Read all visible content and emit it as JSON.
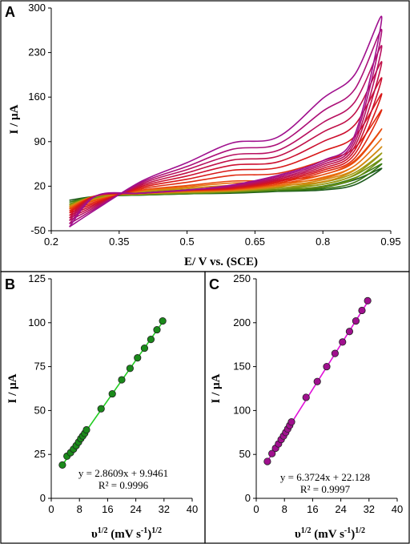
{
  "panels": {
    "a": {
      "letter": "A"
    },
    "b": {
      "letter": "B"
    },
    "c": {
      "letter": "C"
    }
  },
  "chart_data": [
    {
      "type": "line",
      "panel": "A",
      "xlabel": "E/ V vs. (SCE)",
      "ylabel": "I / µA",
      "xlim": [
        0.2,
        0.95
      ],
      "ylim": [
        -50,
        300
      ],
      "xticks": [
        "0.2",
        "0.35",
        "0.5",
        "0.65",
        "0.8",
        "0.95"
      ],
      "yticks": [
        "-50",
        "20",
        "90",
        "160",
        "230",
        "300"
      ],
      "grid": false,
      "description_colors": [
        "#1a5e20",
        "#4f8a10",
        "#8a9a10",
        "#e07a10",
        "#e84a0c",
        "#d81818",
        "#c0103a",
        "#b01070",
        "#a01090"
      ],
      "series": [
        {
          "scan": 1,
          "color": "#1e5b1e",
          "x": [
            0.24,
            0.3,
            0.4,
            0.5,
            0.6,
            0.7,
            0.8,
            0.87,
            0.93,
            0.87,
            0.8,
            0.7,
            0.6,
            0.5,
            0.4,
            0.3,
            0.24
          ],
          "y": [
            -2,
            4,
            9,
            11,
            12,
            12,
            14,
            22,
            48,
            30,
            18,
            12,
            9,
            8,
            6,
            4,
            -2
          ]
        },
        {
          "scan": 2,
          "color": "#3a7a14",
          "x": [
            0.24,
            0.3,
            0.4,
            0.5,
            0.6,
            0.7,
            0.8,
            0.87,
            0.93,
            0.87,
            0.8,
            0.7,
            0.6,
            0.5,
            0.4,
            0.3,
            0.24
          ],
          "y": [
            -5,
            3,
            9,
            12,
            13,
            13,
            16,
            26,
            55,
            33,
            20,
            13,
            10,
            8,
            6,
            4,
            -5
          ]
        },
        {
          "scan": 3,
          "color": "#6a8f12",
          "x": [
            0.24,
            0.3,
            0.4,
            0.5,
            0.6,
            0.7,
            0.8,
            0.87,
            0.93,
            0.87,
            0.8,
            0.7,
            0.6,
            0.5,
            0.4,
            0.3,
            0.24
          ],
          "y": [
            -8,
            2,
            10,
            13,
            15,
            15,
            19,
            32,
            63,
            37,
            23,
            15,
            11,
            9,
            7,
            4,
            -8
          ]
        },
        {
          "scan": 4,
          "color": "#9a9a12",
          "x": [
            0.24,
            0.3,
            0.4,
            0.5,
            0.6,
            0.7,
            0.8,
            0.87,
            0.93,
            0.87,
            0.8,
            0.7,
            0.6,
            0.5,
            0.4,
            0.3,
            0.24
          ],
          "y": [
            -10,
            1,
            11,
            15,
            18,
            18,
            23,
            38,
            72,
            41,
            26,
            17,
            12,
            10,
            8,
            4,
            -10
          ]
        },
        {
          "scan": 5,
          "color": "#d08a10",
          "x": [
            0.24,
            0.3,
            0.4,
            0.5,
            0.6,
            0.7,
            0.8,
            0.87,
            0.93,
            0.87,
            0.8,
            0.7,
            0.6,
            0.5,
            0.4,
            0.3,
            0.24
          ],
          "y": [
            -12,
            0,
            12,
            17,
            21,
            21,
            27,
            45,
            82,
            46,
            30,
            19,
            13,
            11,
            8,
            5,
            -12
          ]
        },
        {
          "scan": 6,
          "color": "#e87010",
          "x": [
            0.24,
            0.3,
            0.4,
            0.5,
            0.6,
            0.7,
            0.8,
            0.87,
            0.93,
            0.87,
            0.8,
            0.7,
            0.6,
            0.5,
            0.4,
            0.3,
            0.24
          ],
          "y": [
            -14,
            -1,
            13,
            19,
            25,
            25,
            32,
            52,
            95,
            52,
            34,
            21,
            14,
            12,
            9,
            5,
            -14
          ]
        },
        {
          "scan": 7,
          "color": "#e84a0c",
          "x": [
            0.24,
            0.3,
            0.4,
            0.5,
            0.6,
            0.7,
            0.8,
            0.87,
            0.93,
            0.87,
            0.8,
            0.7,
            0.6,
            0.5,
            0.4,
            0.3,
            0.24
          ],
          "y": [
            -16,
            -2,
            14,
            21,
            28,
            29,
            38,
            60,
            110,
            58,
            38,
            23,
            15,
            13,
            9,
            5,
            -16
          ]
        },
        {
          "scan": 8,
          "color": "#e02a10",
          "x": [
            0.24,
            0.3,
            0.4,
            0.5,
            0.6,
            0.7,
            0.8,
            0.87,
            0.93,
            0.87,
            0.8,
            0.7,
            0.6,
            0.5,
            0.4,
            0.3,
            0.24
          ],
          "y": [
            -19,
            -4,
            16,
            26,
            37,
            40,
            60,
            80,
            140,
            64,
            42,
            25,
            16,
            13,
            9,
            5,
            -19
          ]
        },
        {
          "scan": 9,
          "color": "#d81818",
          "x": [
            0.24,
            0.3,
            0.4,
            0.5,
            0.6,
            0.7,
            0.8,
            0.87,
            0.93,
            0.87,
            0.8,
            0.7,
            0.6,
            0.5,
            0.4,
            0.3,
            0.24
          ],
          "y": [
            -22,
            -6,
            18,
            31,
            45,
            49,
            75,
            98,
            165,
            70,
            45,
            27,
            17,
            14,
            9,
            5,
            -22
          ]
        },
        {
          "scan": 10,
          "color": "#cc1030",
          "x": [
            0.24,
            0.3,
            0.4,
            0.5,
            0.6,
            0.7,
            0.8,
            0.87,
            0.93,
            0.87,
            0.8,
            0.7,
            0.6,
            0.5,
            0.4,
            0.3,
            0.24
          ],
          "y": [
            -26,
            -8,
            20,
            36,
            53,
            58,
            90,
            116,
            190,
            76,
            48,
            29,
            18,
            14,
            9,
            5,
            -26
          ]
        },
        {
          "scan": 11,
          "color": "#c01048",
          "x": [
            0.24,
            0.3,
            0.4,
            0.5,
            0.6,
            0.7,
            0.8,
            0.87,
            0.93,
            0.87,
            0.8,
            0.7,
            0.6,
            0.5,
            0.4,
            0.3,
            0.24
          ],
          "y": [
            -30,
            -10,
            22,
            41,
            61,
            67,
            105,
            134,
            215,
            82,
            51,
            31,
            19,
            14,
            9,
            5,
            -30
          ]
        },
        {
          "scan": 12,
          "color": "#b81060",
          "x": [
            0.24,
            0.3,
            0.4,
            0.5,
            0.6,
            0.7,
            0.8,
            0.87,
            0.93,
            0.87,
            0.8,
            0.7,
            0.6,
            0.5,
            0.4,
            0.3,
            0.24
          ],
          "y": [
            -34,
            -12,
            24,
            46,
            69,
            76,
            120,
            152,
            240,
            88,
            54,
            33,
            20,
            14,
            9,
            5,
            -34
          ]
        },
        {
          "scan": 13,
          "color": "#ac1078",
          "x": [
            0.24,
            0.3,
            0.4,
            0.5,
            0.6,
            0.7,
            0.8,
            0.87,
            0.93,
            0.87,
            0.8,
            0.7,
            0.6,
            0.5,
            0.4,
            0.3,
            0.24
          ],
          "y": [
            -39,
            -14,
            26,
            51,
            78,
            86,
            138,
            172,
            265,
            94,
            57,
            35,
            21,
            14,
            9,
            5,
            -39
          ]
        },
        {
          "scan": 14,
          "color": "#a0108e",
          "x": [
            0.24,
            0.3,
            0.4,
            0.5,
            0.6,
            0.7,
            0.8,
            0.87,
            0.93,
            0.87,
            0.8,
            0.7,
            0.6,
            0.5,
            0.4,
            0.3,
            0.24
          ],
          "y": [
            -44,
            -16,
            28,
            57,
            88,
            97,
            158,
            195,
            285,
            100,
            60,
            37,
            22,
            14,
            9,
            5,
            -44
          ]
        }
      ]
    },
    {
      "type": "scatter",
      "panel": "B",
      "xlabel": "υ1/2 (mV s-1)1/2",
      "ylabel": "I / µA",
      "xlim": [
        0,
        40
      ],
      "ylim": [
        0,
        125
      ],
      "xticks": [
        "0",
        "8",
        "16",
        "24",
        "32",
        "40"
      ],
      "yticks": [
        "0",
        "25",
        "50",
        "75",
        "100",
        "125"
      ],
      "grid": false,
      "marker_color": "#1a8a1a",
      "line_color": "#22cc22",
      "equation": "y = 2.8609x + 9.9461",
      "r2": "R² = 0.9996",
      "fit": {
        "slope": 2.8609,
        "intercept": 9.9461
      },
      "x": [
        3.16,
        4.47,
        5.48,
        6.32,
        7.07,
        7.75,
        8.37,
        8.94,
        9.49,
        10.0,
        14.14,
        17.32,
        20.0,
        22.36,
        24.49,
        26.46,
        28.28,
        30.0,
        31.62
      ],
      "y": [
        19,
        24,
        26,
        28,
        30,
        32,
        34,
        35.5,
        37,
        39,
        51,
        59.5,
        67.5,
        74,
        80,
        85.5,
        90.5,
        96,
        101
      ]
    },
    {
      "type": "scatter",
      "panel": "C",
      "xlabel": "υ1/2 (mV s-1)1/2",
      "ylabel": "I / µA",
      "xlim": [
        0,
        40
      ],
      "ylim": [
        0,
        250
      ],
      "xticks": [
        "0",
        "8",
        "16",
        "24",
        "32",
        "40"
      ],
      "yticks": [
        "0",
        "50",
        "100",
        "150",
        "200",
        "250"
      ],
      "grid": false,
      "marker_color": "#a0108e",
      "line_color": "#e010d8",
      "equation": "y = 6.3724x + 22.128",
      "r2": "R² = 0.9997",
      "fit": {
        "slope": 6.3724,
        "intercept": 22.128
      },
      "x": [
        3.16,
        4.47,
        5.48,
        6.32,
        7.07,
        7.75,
        8.37,
        8.94,
        9.49,
        10.0,
        14.14,
        17.32,
        20.0,
        22.36,
        24.49,
        26.46,
        28.28,
        30.0,
        31.62
      ],
      "y": [
        42,
        51,
        57,
        62,
        67,
        71,
        75,
        79,
        83,
        87,
        115,
        133,
        150,
        165,
        178,
        190,
        202,
        214,
        225
      ]
    }
  ]
}
